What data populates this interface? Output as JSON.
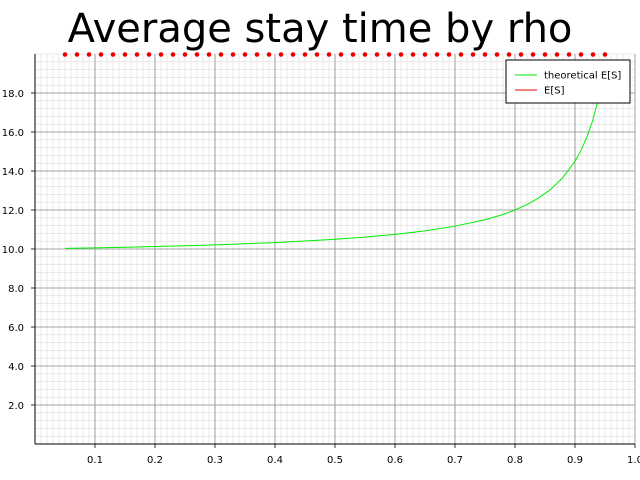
{
  "chart_data": {
    "type": "line",
    "title": "Average stay time by rho",
    "xlabel": "",
    "ylabel": "",
    "xlim": [
      0,
      1.0
    ],
    "ylim": [
      0,
      20
    ],
    "grid": true,
    "legend_position": "top-right",
    "x_ticks": [
      "0.1",
      "0.2",
      "0.3",
      "0.4",
      "0.5",
      "0.6",
      "0.7",
      "0.8",
      "0.9",
      "1.0"
    ],
    "y_ticks": [
      "2.0",
      "4.0",
      "6.0",
      "8.0",
      "10.0",
      "12.0",
      "14.0",
      "16.0",
      "18.0"
    ],
    "series": [
      {
        "name": "theoretical E[S]",
        "color": "#00ee00",
        "style": "line",
        "x": [
          0.05,
          0.1,
          0.15,
          0.2,
          0.25,
          0.3,
          0.35,
          0.4,
          0.45,
          0.5,
          0.55,
          0.6,
          0.65,
          0.7,
          0.75,
          0.78,
          0.8,
          0.82,
          0.84,
          0.86,
          0.88,
          0.9,
          0.91,
          0.92,
          0.93,
          0.94,
          0.95
        ],
        "y": [
          10.03,
          10.06,
          10.09,
          10.13,
          10.17,
          10.21,
          10.27,
          10.33,
          10.41,
          10.5,
          10.61,
          10.75,
          10.93,
          11.17,
          11.5,
          11.77,
          12.0,
          12.28,
          12.63,
          13.07,
          13.67,
          14.5,
          15.06,
          15.75,
          16.64,
          17.83,
          19.5
        ]
      },
      {
        "name": "E[S]",
        "color": "#ee0000",
        "style": "markers",
        "x": [
          0.05,
          0.07,
          0.09,
          0.11,
          0.13,
          0.15,
          0.17,
          0.19,
          0.21,
          0.23,
          0.25,
          0.27,
          0.29,
          0.31,
          0.33,
          0.35,
          0.37,
          0.39,
          0.41,
          0.43,
          0.45,
          0.47,
          0.49,
          0.51,
          0.53,
          0.55,
          0.57,
          0.59,
          0.61,
          0.63,
          0.65,
          0.67,
          0.69,
          0.71,
          0.73,
          0.75,
          0.77,
          0.79,
          0.81,
          0.83,
          0.85,
          0.87,
          0.89,
          0.91,
          0.93,
          0.95
        ],
        "y": [
          20,
          20,
          20,
          20,
          20,
          20,
          20,
          20,
          20,
          20,
          20,
          20,
          20,
          20,
          20,
          20,
          20,
          20,
          20,
          20,
          20,
          20,
          20,
          20,
          20,
          20,
          20,
          20,
          20,
          20,
          20,
          20,
          20,
          20,
          20,
          20,
          20,
          20,
          20,
          20,
          20,
          20,
          20,
          20,
          20,
          20
        ]
      }
    ]
  }
}
